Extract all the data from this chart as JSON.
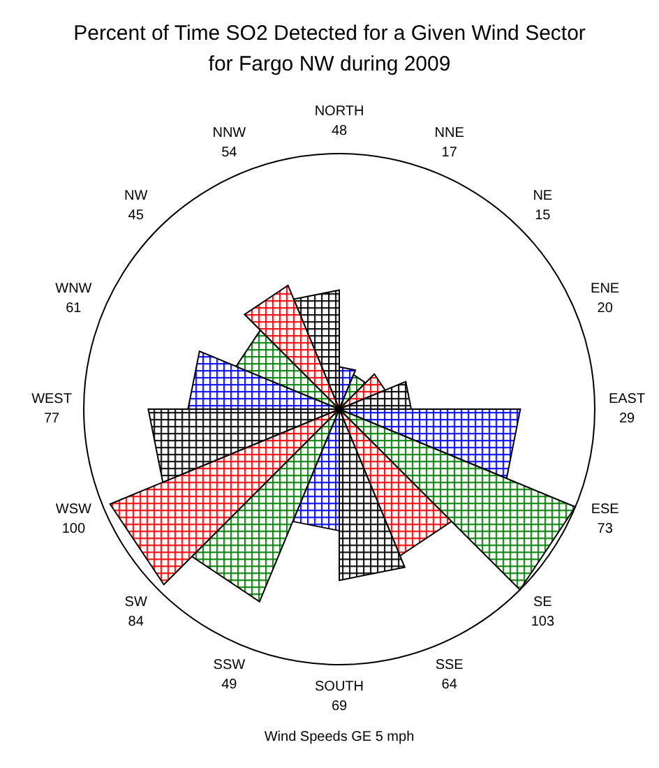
{
  "chart_data": {
    "type": "other",
    "title": "Percent of Time SO2 Detected for a Given Wind Sector\nfor Fargo NW during 2009",
    "categories": [
      "NORTH",
      "NNE",
      "NE",
      "ENE",
      "EAST",
      "ESE",
      "SE",
      "SSE",
      "SOUTH",
      "SSW",
      "SW",
      "WSW",
      "WEST",
      "WNW",
      "NW",
      "NNW"
    ],
    "values": [
      48,
      17,
      15,
      20,
      29,
      73,
      103,
      64,
      69,
      49,
      84,
      100,
      77,
      61,
      45,
      54
    ],
    "colors": [
      "#000000",
      "#0000ff",
      "#008000",
      "#ff0000",
      "#000000",
      "#0000ff",
      "#008000",
      "#ff0000",
      "#000000",
      "#0000ff",
      "#008000",
      "#ff0000",
      "#000000",
      "#0000ff",
      "#008000",
      "#ff0000"
    ],
    "data_labels": true,
    "annotations": [
      "Wind Speeds GE 5 mph"
    ]
  }
}
